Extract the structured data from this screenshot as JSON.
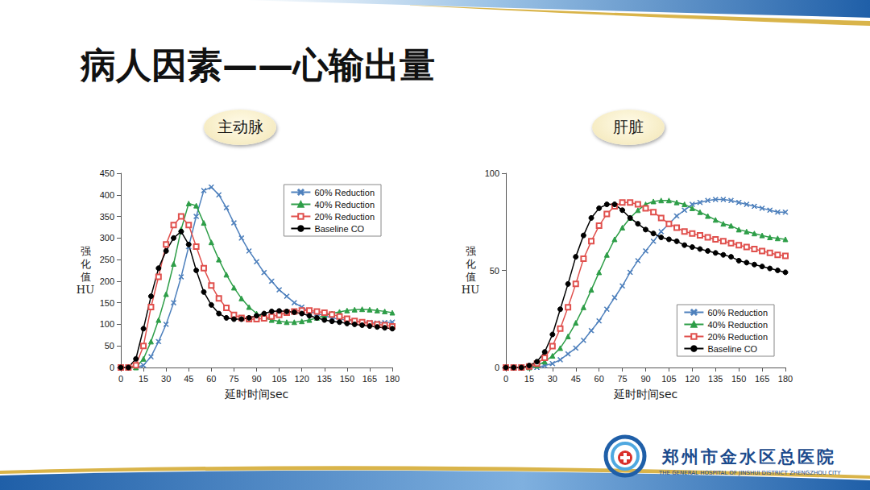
{
  "title": "病人因素——心输出量",
  "footer": {
    "name": "郑州市金水区总医院",
    "name_en": "THE GENERAL HOSPITAL OF JINSHUI DISTRICT ZHENGZHOU CITY"
  },
  "chart_data": [
    {
      "type": "line",
      "title": "主动脉",
      "x_label": "延时时间sec",
      "y_label": "强化值 HU",
      "x": [
        0,
        5,
        10,
        15,
        20,
        25,
        30,
        35,
        40,
        45,
        50,
        55,
        60,
        65,
        70,
        75,
        80,
        85,
        90,
        95,
        100,
        105,
        110,
        115,
        120,
        125,
        130,
        135,
        140,
        145,
        150,
        155,
        160,
        165,
        170,
        175,
        180
      ],
      "xlim": [
        0,
        180
      ],
      "xticks": [
        0,
        15,
        30,
        45,
        60,
        75,
        90,
        105,
        120,
        135,
        150,
        165,
        180
      ],
      "ylim": [
        0,
        450
      ],
      "yticks": [
        0,
        50,
        100,
        150,
        200,
        250,
        300,
        350,
        400,
        450
      ],
      "grid": false,
      "legend": "upper right",
      "series": [
        {
          "name": "60% Reduction",
          "color": "#4f81bd",
          "marker": "x",
          "values": [
            0,
            0,
            0,
            5,
            25,
            60,
            100,
            150,
            210,
            280,
            350,
            410,
            418,
            400,
            370,
            335,
            300,
            270,
            245,
            220,
            200,
            180,
            165,
            150,
            140,
            130,
            125,
            120,
            115,
            112,
            110,
            108,
            106,
            104,
            103,
            104,
            105
          ]
        },
        {
          "name": "40% Reduction",
          "color": "#2e9e48",
          "marker": "triangle",
          "values": [
            0,
            0,
            0,
            20,
            60,
            110,
            170,
            240,
            320,
            380,
            375,
            335,
            290,
            250,
            215,
            185,
            160,
            140,
            125,
            115,
            110,
            107,
            105,
            105,
            107,
            110,
            115,
            120,
            125,
            129,
            132,
            134,
            135,
            134,
            132,
            130,
            127
          ]
        },
        {
          "name": "20% Reduction",
          "color": "#e0504d",
          "marker": "square",
          "values": [
            0,
            0,
            5,
            50,
            140,
            210,
            285,
            330,
            350,
            330,
            280,
            230,
            190,
            160,
            138,
            122,
            115,
            112,
            112,
            114,
            118,
            122,
            127,
            130,
            132,
            132,
            130,
            127,
            123,
            118,
            113,
            108,
            105,
            102,
            100,
            98,
            95
          ]
        },
        {
          "name": "Baseline CO",
          "color": "#000000",
          "marker": "circle",
          "values": [
            0,
            0,
            20,
            90,
            165,
            230,
            270,
            300,
            315,
            285,
            225,
            175,
            145,
            125,
            115,
            112,
            112,
            115,
            120,
            125,
            130,
            131,
            130,
            128,
            125,
            120,
            115,
            110,
            107,
            105,
            102,
            100,
            98,
            96,
            94,
            92,
            90
          ]
        }
      ]
    },
    {
      "type": "line",
      "title": "肝脏",
      "x_label": "延时时间sec",
      "y_label": "强化值 HU",
      "x": [
        0,
        5,
        10,
        15,
        20,
        25,
        30,
        35,
        40,
        45,
        50,
        55,
        60,
        65,
        70,
        75,
        80,
        85,
        90,
        95,
        100,
        105,
        110,
        115,
        120,
        125,
        130,
        135,
        140,
        145,
        150,
        155,
        160,
        165,
        170,
        175,
        180
      ],
      "xlim": [
        0,
        180
      ],
      "xticks": [
        0,
        15,
        30,
        45,
        60,
        75,
        90,
        105,
        120,
        135,
        150,
        165,
        180
      ],
      "ylim": [
        0,
        100
      ],
      "yticks": [
        0,
        50,
        100
      ],
      "grid": false,
      "legend": "lower right",
      "series": [
        {
          "name": "60% Reduction",
          "color": "#4f81bd",
          "marker": "x",
          "values": [
            0,
            0,
            0,
            0,
            0,
            1,
            2,
            4,
            7,
            10,
            14,
            19,
            24,
            30,
            36,
            42,
            49,
            55,
            60,
            65,
            70,
            74,
            78,
            81,
            84,
            85,
            86,
            86.5,
            86.5,
            86,
            85,
            84,
            83,
            82,
            81,
            80,
            80
          ]
        },
        {
          "name": "40% Reduction",
          "color": "#2e9e48",
          "marker": "triangle",
          "values": [
            0,
            0,
            0,
            0,
            1,
            3,
            6,
            10,
            16,
            23,
            31,
            40,
            49,
            58,
            66,
            72,
            77,
            81,
            84,
            85.5,
            86,
            86,
            85,
            84,
            82,
            80,
            78,
            76,
            74,
            73,
            71,
            70,
            69,
            68,
            67,
            66.5,
            66
          ]
        },
        {
          "name": "20% Reduction",
          "color": "#e0504d",
          "marker": "square",
          "values": [
            0,
            0,
            0,
            0.5,
            2,
            5,
            11,
            20,
            31,
            43,
            56,
            65,
            73,
            79,
            83,
            85,
            85,
            84,
            82,
            80,
            77,
            74,
            72,
            70,
            69,
            68,
            67,
            66,
            65,
            64,
            63,
            62,
            61,
            60,
            59,
            58,
            57.5
          ]
        },
        {
          "name": "Baseline CO",
          "color": "#000000",
          "marker": "circle",
          "values": [
            0,
            0,
            0,
            1,
            3,
            8,
            17,
            30,
            43,
            57,
            68,
            77,
            82,
            84,
            84,
            81,
            77,
            74,
            71,
            69,
            67,
            66,
            65,
            63,
            62,
            61,
            60,
            59,
            58,
            57,
            55,
            54,
            53,
            52,
            51,
            50,
            49
          ]
        }
      ]
    }
  ]
}
